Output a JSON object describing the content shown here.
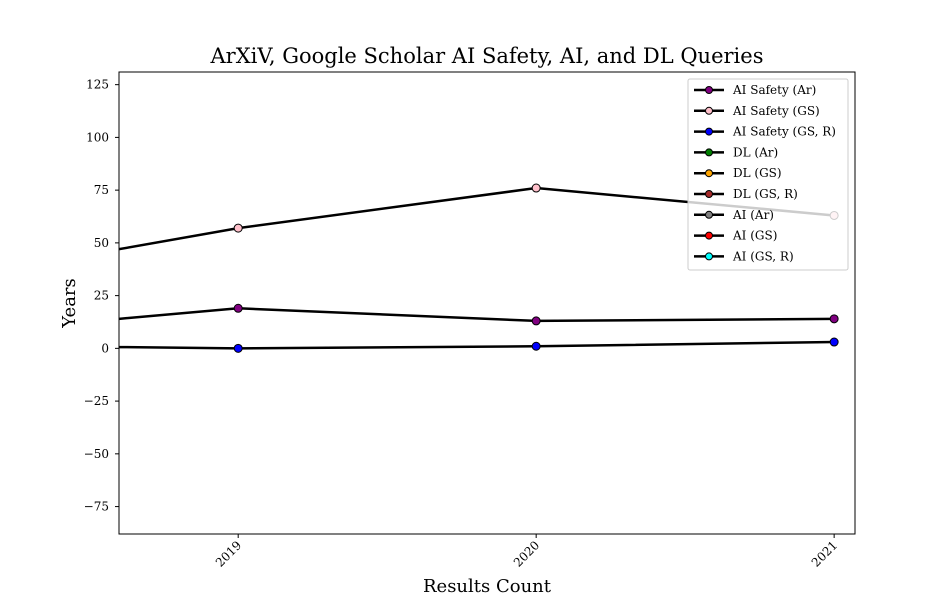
{
  "chart_data": {
    "type": "line",
    "title": "ArXiV, Google Scholar AI Safety, AI, and DL Queries",
    "xlabel": "Results Count",
    "ylabel": "Years",
    "x": [
      "2019",
      "2020",
      "2021"
    ],
    "xlim": [
      2018.6,
      2021.07
    ],
    "ylim": [
      -88,
      131
    ],
    "yticks": [
      -75,
      -50,
      -25,
      0,
      25,
      50,
      75,
      100,
      125
    ],
    "grid": false,
    "legend_position": "top-right",
    "series": [
      {
        "name": "AI Safety (Ar)",
        "color": "#800080",
        "x": [
          2018.6,
          2019,
          2020,
          2021
        ],
        "values": [
          14,
          19,
          13,
          14
        ]
      },
      {
        "name": "AI Safety (GS)",
        "color": "#ffc0cb",
        "x": [
          2018.6,
          2019,
          2020,
          2021
        ],
        "values": [
          47,
          57,
          76,
          63
        ]
      },
      {
        "name": "AI Safety (GS, R)",
        "color": "#0000ff",
        "x": [
          2018.6,
          2019,
          2020,
          2021
        ],
        "values": [
          0.6,
          0,
          1,
          3
        ]
      },
      {
        "name": "DL (Ar)",
        "color": "#008000",
        "x": [],
        "values": []
      },
      {
        "name": "DL (GS)",
        "color": "#ffa500",
        "x": [],
        "values": []
      },
      {
        "name": "DL (GS, R)",
        "color": "#a52a2a",
        "x": [],
        "values": []
      },
      {
        "name": "AI (Ar)",
        "color": "#808080",
        "x": [],
        "values": []
      },
      {
        "name": "AI (GS)",
        "color": "#ff0000",
        "x": [],
        "values": []
      },
      {
        "name": "AI (GS, R)",
        "color": "#00ffff",
        "x": [],
        "values": []
      }
    ]
  }
}
